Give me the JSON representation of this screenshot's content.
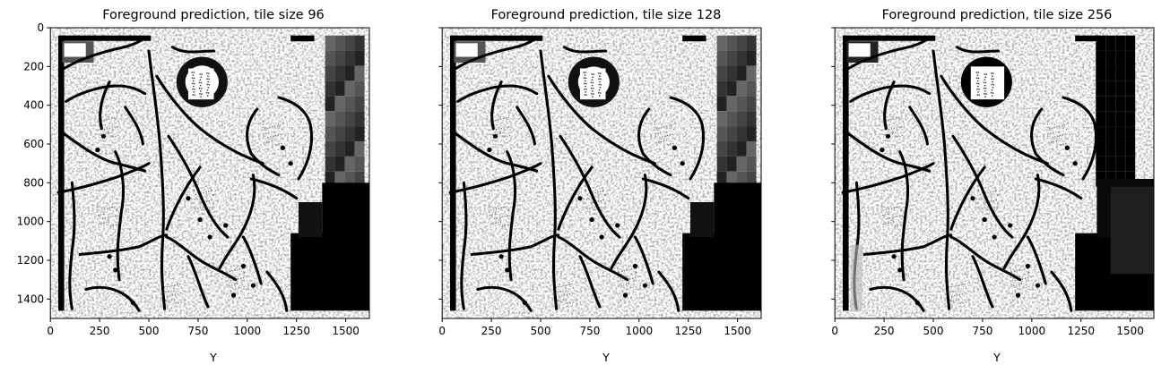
{
  "chart_data": [
    {
      "type": "heatmap",
      "title": "Foreground prediction, tile size 96",
      "xlabel": "Y",
      "ylabel": "",
      "xlim": [
        0,
        1620
      ],
      "ylim": [
        1500,
        0
      ],
      "xticks": [
        "0",
        "250",
        "500",
        "750",
        "1000",
        "1250",
        "1500"
      ],
      "yticks": [
        "0",
        "200",
        "400",
        "600",
        "800",
        "1000",
        "1200",
        "1400"
      ],
      "colormap": "grayscale",
      "grid": false
    },
    {
      "type": "heatmap",
      "title": "Foreground prediction, tile size 128",
      "xlabel": "Y",
      "ylabel": "",
      "xlim": [
        0,
        1620
      ],
      "ylim": [
        1500,
        0
      ],
      "xticks": [
        "0",
        "250",
        "500",
        "750",
        "1000",
        "1250",
        "1500"
      ],
      "yticks": [],
      "colormap": "grayscale",
      "grid": false
    },
    {
      "type": "heatmap",
      "title": "Foreground prediction, tile size 256",
      "xlabel": "Y",
      "ylabel": "",
      "xlim": [
        0,
        1620
      ],
      "ylim": [
        1500,
        0
      ],
      "xticks": [
        "0",
        "250",
        "500",
        "750",
        "1000",
        "1250",
        "1500"
      ],
      "yticks": [],
      "colormap": "grayscale",
      "grid": false
    }
  ]
}
